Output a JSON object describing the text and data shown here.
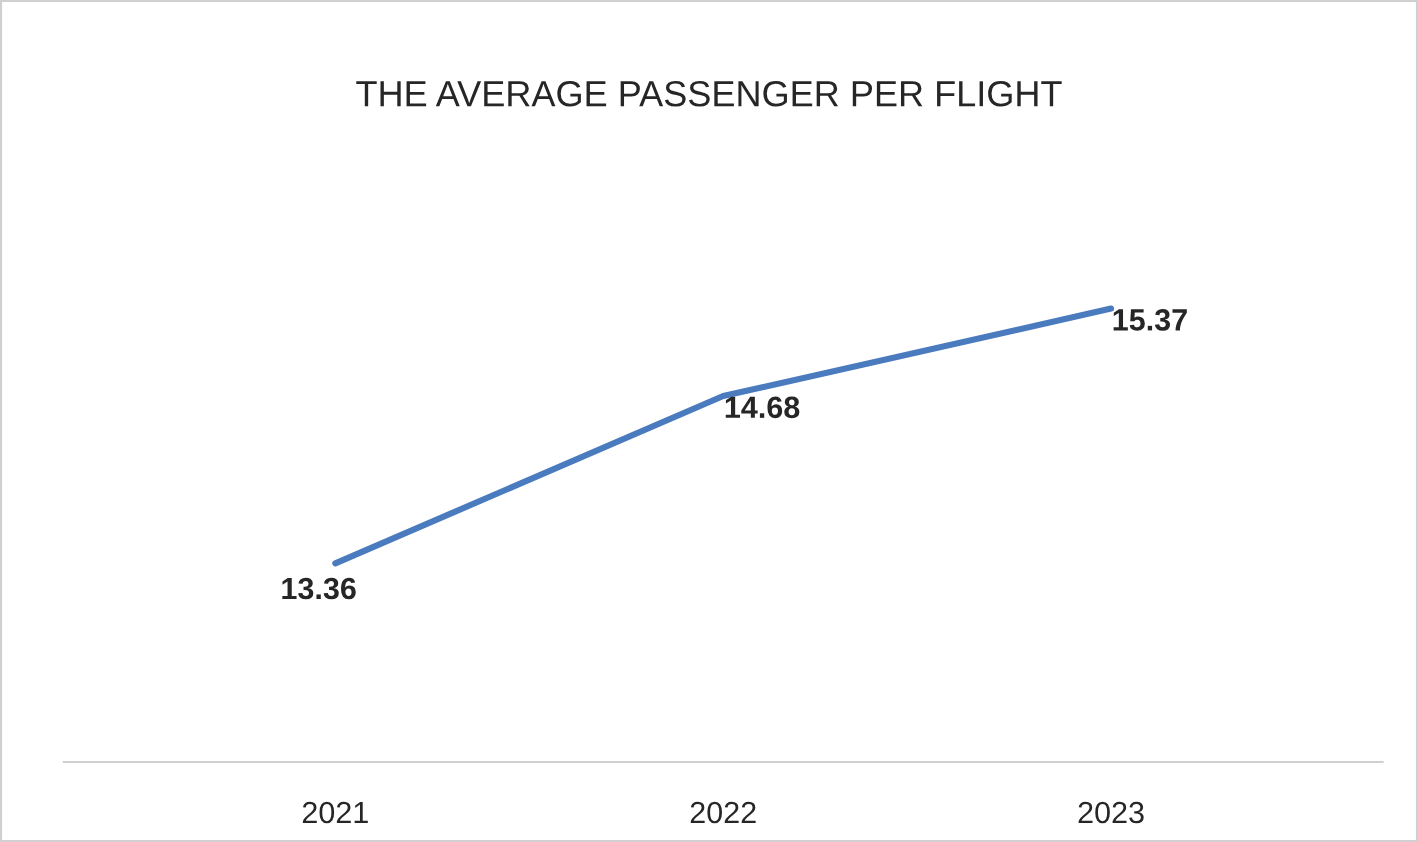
{
  "chart_data": {
    "type": "line",
    "title": "THE AVERAGE PASSENGER PER FLIGHT",
    "categories": [
      "2021",
      "2022",
      "2023"
    ],
    "series": [
      {
        "color": "#4a7bbf",
        "values": [
          13.36,
          14.68,
          15.37
        ]
      }
    ],
    "data_labels": true,
    "marker": "none",
    "line_style": "solid",
    "grid": false,
    "legend": false,
    "tick_labels": "x"
  }
}
